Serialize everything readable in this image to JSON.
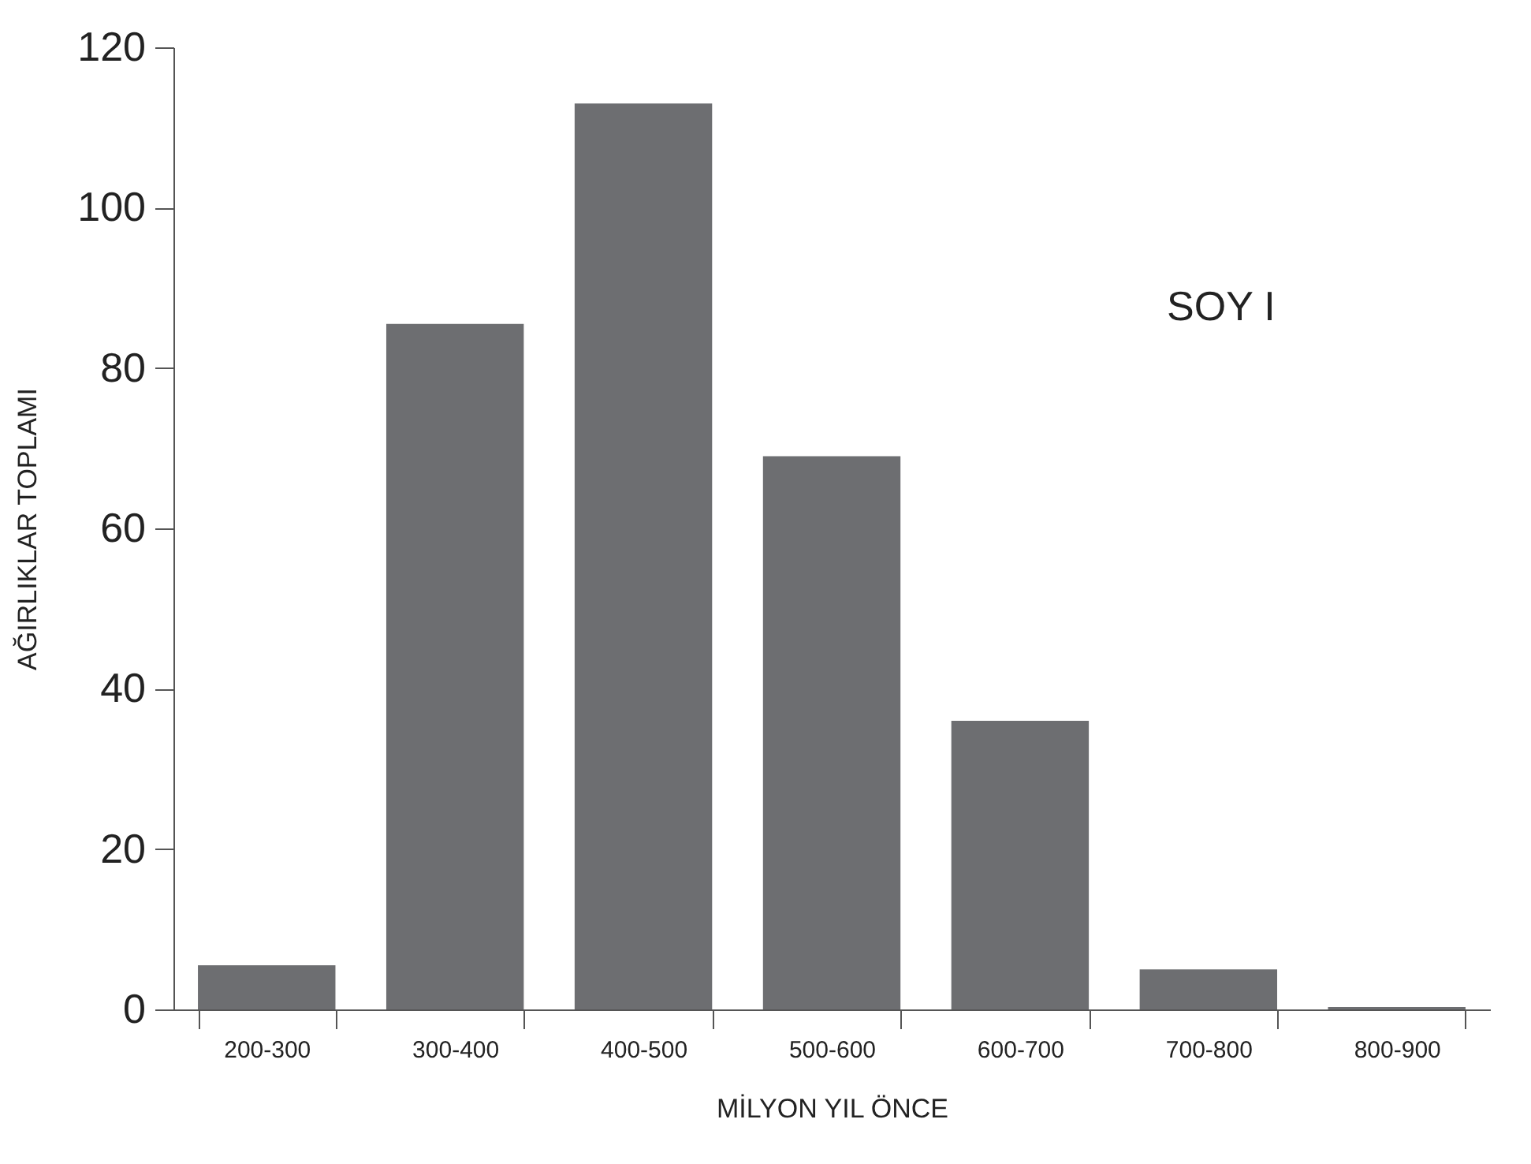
{
  "chart_data": {
    "type": "bar",
    "xlabel": "MİLYON YIL ÖNCE",
    "ylabel": "AĞIRLIKLAR TOPLAMI",
    "annotations": [
      "SOY I"
    ],
    "categories": [
      "200-300",
      "300-400",
      "400-500",
      "500-600",
      "600-700",
      "700-800",
      "800-900"
    ],
    "values": [
      5.5,
      85.5,
      113,
      69,
      36,
      5,
      0.3
    ],
    "color": "#6d6e71",
    "ylim": [
      0,
      120
    ],
    "yticks": [
      0,
      20,
      40,
      60,
      80,
      100,
      120
    ],
    "grid": false
  }
}
